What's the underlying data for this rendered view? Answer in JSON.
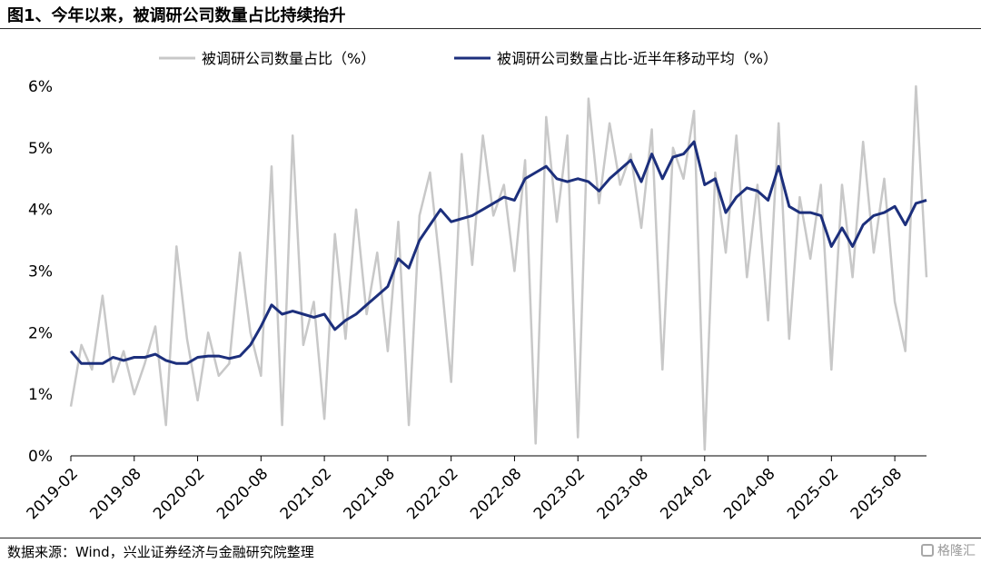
{
  "title": "图1、今年以来，被调研公司数量占比持续抬升",
  "source": "数据来源：Wind，兴业证券经济与金融研究院整理",
  "watermark": "格隆汇",
  "colors": {
    "raw": "#c8c8c8",
    "ma": "#1c2f7c",
    "axis": "#000000"
  },
  "chart_data": {
    "type": "line",
    "title": "图1、今年以来，被调研公司数量占比持续抬升",
    "xlabel": "",
    "ylabel": "",
    "ylim": [
      0,
      6
    ],
    "yticks": [
      "0%",
      "1%",
      "2%",
      "3%",
      "4%",
      "5%",
      "6%"
    ],
    "xticks": [
      "2019-02",
      "2019-08",
      "2020-02",
      "2020-08",
      "2021-02",
      "2021-08",
      "2022-02",
      "2022-08",
      "2023-02",
      "2023-08",
      "2024-02",
      "2024-08",
      "2025-02",
      "2025-08"
    ],
    "x_range": [
      "2019-02",
      "2025-11"
    ],
    "grid": false,
    "legend": "top",
    "series": [
      {
        "name": "被调研公司数量占比（%）",
        "color": "#c8c8c8",
        "points": [
          [
            "2019-02",
            0.8
          ],
          [
            "2019-03",
            1.8
          ],
          [
            "2019-04",
            1.4
          ],
          [
            "2019-05",
            2.6
          ],
          [
            "2019-06",
            1.2
          ],
          [
            "2019-07",
            1.7
          ],
          [
            "2019-08",
            1.0
          ],
          [
            "2019-09",
            1.5
          ],
          [
            "2019-10",
            2.1
          ],
          [
            "2019-11",
            0.5
          ],
          [
            "2019-12",
            3.4
          ],
          [
            "2020-01",
            1.9
          ],
          [
            "2020-02",
            0.9
          ],
          [
            "2020-03",
            2.0
          ],
          [
            "2020-04",
            1.3
          ],
          [
            "2020-05",
            1.5
          ],
          [
            "2020-06",
            3.3
          ],
          [
            "2020-07",
            2.0
          ],
          [
            "2020-08",
            1.3
          ],
          [
            "2020-09",
            4.7
          ],
          [
            "2020-10",
            0.5
          ],
          [
            "2020-11",
            5.2
          ],
          [
            "2020-12",
            1.8
          ],
          [
            "2021-01",
            2.5
          ],
          [
            "2021-02",
            0.6
          ],
          [
            "2021-03",
            3.6
          ],
          [
            "2021-04",
            1.9
          ],
          [
            "2021-05",
            4.0
          ],
          [
            "2021-06",
            2.3
          ],
          [
            "2021-07",
            3.3
          ],
          [
            "2021-08",
            1.7
          ],
          [
            "2021-09",
            3.8
          ],
          [
            "2021-10",
            0.5
          ],
          [
            "2021-11",
            3.9
          ],
          [
            "2021-12",
            4.6
          ],
          [
            "2022-01",
            3.0
          ],
          [
            "2022-02",
            1.2
          ],
          [
            "2022-03",
            4.9
          ],
          [
            "2022-04",
            3.1
          ],
          [
            "2022-05",
            5.2
          ],
          [
            "2022-06",
            3.9
          ],
          [
            "2022-07",
            4.4
          ],
          [
            "2022-08",
            3.0
          ],
          [
            "2022-09",
            4.8
          ],
          [
            "2022-10",
            0.2
          ],
          [
            "2022-11",
            5.5
          ],
          [
            "2022-12",
            3.8
          ],
          [
            "2023-01",
            5.2
          ],
          [
            "2023-02",
            0.3
          ],
          [
            "2023-03",
            5.8
          ],
          [
            "2023-04",
            4.1
          ],
          [
            "2023-05",
            5.4
          ],
          [
            "2023-06",
            4.4
          ],
          [
            "2023-07",
            4.9
          ],
          [
            "2023-08",
            3.7
          ],
          [
            "2023-09",
            5.3
          ],
          [
            "2023-10",
            1.4
          ],
          [
            "2023-11",
            5.0
          ],
          [
            "2023-12",
            4.5
          ],
          [
            "2024-01",
            5.6
          ],
          [
            "2024-02",
            0.1
          ],
          [
            "2024-03",
            4.6
          ],
          [
            "2024-04",
            3.3
          ],
          [
            "2024-05",
            5.2
          ],
          [
            "2024-06",
            2.9
          ],
          [
            "2024-07",
            4.4
          ],
          [
            "2024-08",
            2.2
          ],
          [
            "2024-09",
            5.4
          ],
          [
            "2024-10",
            1.9
          ],
          [
            "2024-11",
            4.2
          ],
          [
            "2024-12",
            3.2
          ],
          [
            "2025-01",
            4.4
          ],
          [
            "2025-02",
            1.4
          ],
          [
            "2025-03",
            4.4
          ],
          [
            "2025-04",
            2.9
          ],
          [
            "2025-05",
            5.1
          ],
          [
            "2025-06",
            3.3
          ],
          [
            "2025-07",
            4.5
          ],
          [
            "2025-08",
            2.5
          ],
          [
            "2025-09",
            1.7
          ],
          [
            "2025-10",
            6.0
          ],
          [
            "2025-11",
            2.9
          ]
        ]
      },
      {
        "name": "被调研公司数量占比-近半年移动平均（%）",
        "color": "#1c2f7c",
        "points": [
          [
            "2019-02",
            1.7
          ],
          [
            "2019-03",
            1.5
          ],
          [
            "2019-04",
            1.5
          ],
          [
            "2019-05",
            1.5
          ],
          [
            "2019-06",
            1.6
          ],
          [
            "2019-07",
            1.55
          ],
          [
            "2019-08",
            1.6
          ],
          [
            "2019-09",
            1.6
          ],
          [
            "2019-10",
            1.65
          ],
          [
            "2019-11",
            1.55
          ],
          [
            "2019-12",
            1.5
          ],
          [
            "2020-01",
            1.5
          ],
          [
            "2020-02",
            1.6
          ],
          [
            "2020-03",
            1.62
          ],
          [
            "2020-04",
            1.62
          ],
          [
            "2020-05",
            1.58
          ],
          [
            "2020-06",
            1.62
          ],
          [
            "2020-07",
            1.8
          ],
          [
            "2020-08",
            2.1
          ],
          [
            "2020-09",
            2.45
          ],
          [
            "2020-10",
            2.3
          ],
          [
            "2020-11",
            2.35
          ],
          [
            "2020-12",
            2.3
          ],
          [
            "2021-01",
            2.25
          ],
          [
            "2021-02",
            2.3
          ],
          [
            "2021-03",
            2.05
          ],
          [
            "2021-04",
            2.2
          ],
          [
            "2021-05",
            2.3
          ],
          [
            "2021-06",
            2.45
          ],
          [
            "2021-07",
            2.6
          ],
          [
            "2021-08",
            2.75
          ],
          [
            "2021-09",
            3.2
          ],
          [
            "2021-10",
            3.05
          ],
          [
            "2021-11",
            3.5
          ],
          [
            "2021-12",
            3.75
          ],
          [
            "2022-01",
            4.0
          ],
          [
            "2022-02",
            3.8
          ],
          [
            "2022-03",
            3.85
          ],
          [
            "2022-04",
            3.9
          ],
          [
            "2022-05",
            4.0
          ],
          [
            "2022-06",
            4.1
          ],
          [
            "2022-07",
            4.2
          ],
          [
            "2022-08",
            4.15
          ],
          [
            "2022-09",
            4.5
          ],
          [
            "2022-10",
            4.6
          ],
          [
            "2022-11",
            4.7
          ],
          [
            "2022-12",
            4.5
          ],
          [
            "2023-01",
            4.45
          ],
          [
            "2023-02",
            4.5
          ],
          [
            "2023-03",
            4.45
          ],
          [
            "2023-04",
            4.3
          ],
          [
            "2023-05",
            4.5
          ],
          [
            "2023-06",
            4.65
          ],
          [
            "2023-07",
            4.8
          ],
          [
            "2023-08",
            4.45
          ],
          [
            "2023-09",
            4.9
          ],
          [
            "2023-10",
            4.5
          ],
          [
            "2023-11",
            4.85
          ],
          [
            "2023-12",
            4.9
          ],
          [
            "2024-01",
            5.1
          ],
          [
            "2024-02",
            4.4
          ],
          [
            "2024-03",
            4.5
          ],
          [
            "2024-04",
            3.95
          ],
          [
            "2024-05",
            4.2
          ],
          [
            "2024-06",
            4.35
          ],
          [
            "2024-07",
            4.3
          ],
          [
            "2024-08",
            4.15
          ],
          [
            "2024-09",
            4.7
          ],
          [
            "2024-10",
            4.05
          ],
          [
            "2024-11",
            3.95
          ],
          [
            "2024-12",
            3.95
          ],
          [
            "2025-01",
            3.9
          ],
          [
            "2025-02",
            3.4
          ],
          [
            "2025-03",
            3.7
          ],
          [
            "2025-04",
            3.4
          ],
          [
            "2025-05",
            3.75
          ],
          [
            "2025-06",
            3.9
          ],
          [
            "2025-07",
            3.95
          ],
          [
            "2025-08",
            4.05
          ],
          [
            "2025-09",
            3.75
          ],
          [
            "2025-10",
            4.1
          ],
          [
            "2025-11",
            4.15
          ]
        ]
      }
    ]
  }
}
